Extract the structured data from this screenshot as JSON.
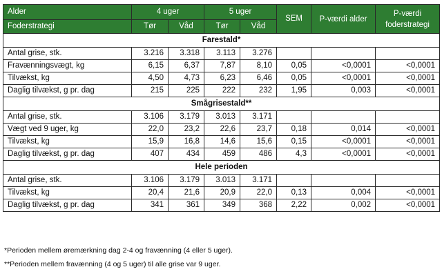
{
  "header": {
    "alder_label": "Alder",
    "foderstrategi_label": "Foderstrategi",
    "age_groups": [
      "4 uger",
      "5 uger"
    ],
    "sub_columns": [
      "Tør",
      "Våd",
      "Tør",
      "Våd"
    ],
    "sem": "SEM",
    "p_alder": "P-værdi alder",
    "p_foder": "P-værdi foderstrategi"
  },
  "sections": [
    {
      "title": "Farestald*",
      "rows": [
        {
          "label": "Antal grise, stk.",
          "values": [
            "3.216",
            "3.318",
            "3.113",
            "3.276"
          ],
          "sem": "",
          "p_alder": "",
          "p_foder": ""
        },
        {
          "label": "Fravænningsvægt, kg",
          "values": [
            "6,15",
            "6,37",
            "7,87",
            "8,10"
          ],
          "sem": "0,05",
          "p_alder": "<0,0001",
          "p_foder": "<0,0001"
        },
        {
          "label": "Tilvækst, kg",
          "values": [
            "4,50",
            "4,73",
            "6,23",
            "6,46"
          ],
          "sem": "0,05",
          "p_alder": "<0,0001",
          "p_foder": "<0,0001"
        },
        {
          "label": "Daglig tilvækst, g pr. dag",
          "values": [
            "215",
            "225",
            "222",
            "232"
          ],
          "sem": "1,95",
          "p_alder": "0,003",
          "p_foder": "<0,0001"
        }
      ]
    },
    {
      "title": "Smågrisestald**",
      "rows": [
        {
          "label": "Antal grise, stk.",
          "values": [
            "3.106",
            "3.179",
            "3.013",
            "3.171"
          ],
          "sem": "",
          "p_alder": "",
          "p_foder": ""
        },
        {
          "label": "Vægt ved 9 uger, kg",
          "values": [
            "22,0",
            "23,2",
            "22,6",
            "23,7"
          ],
          "sem": "0,18",
          "p_alder": "0,014",
          "p_foder": "<0,0001"
        },
        {
          "label": "Tilvækst, kg",
          "values": [
            "15,9",
            "16,8",
            "14,6",
            "15,6"
          ],
          "sem": "0,15",
          "p_alder": "<0,0001",
          "p_foder": "<0,0001"
        },
        {
          "label": "Daglig tilvækst, g pr. dag",
          "values": [
            "407",
            "434",
            "459",
            "486"
          ],
          "sem": "4,3",
          "p_alder": "<0,0001",
          "p_foder": "<0,0001"
        }
      ]
    },
    {
      "title": "Hele perioden",
      "rows": [
        {
          "label": "Antal grise, stk.",
          "values": [
            "3.106",
            "3.179",
            "3.013",
            "3.171"
          ],
          "sem": "",
          "p_alder": "",
          "p_foder": ""
        },
        {
          "label": "Tilvækst, kg",
          "values": [
            "20,4",
            "21,6",
            "20,9",
            "22,0"
          ],
          "sem": "0,13",
          "p_alder": "0,004",
          "p_foder": "<0,0001"
        },
        {
          "label": "Daglig tilvækst, g pr. dag",
          "values": [
            "341",
            "361",
            "349",
            "368"
          ],
          "sem": "2,22",
          "p_alder": "0,002",
          "p_foder": "<0,0001"
        }
      ]
    }
  ],
  "footnotes": [
    "*Perioden mellem øremærkning dag 2-4 og fravænning (4 eller 5 uger).",
    "**Perioden mellem fravænning (4 og 5 uger) til alle grise var 9 uger."
  ],
  "colors": {
    "header_bg": "#2e7d32",
    "header_text": "#ffffff",
    "border": "#2a2a2a"
  }
}
